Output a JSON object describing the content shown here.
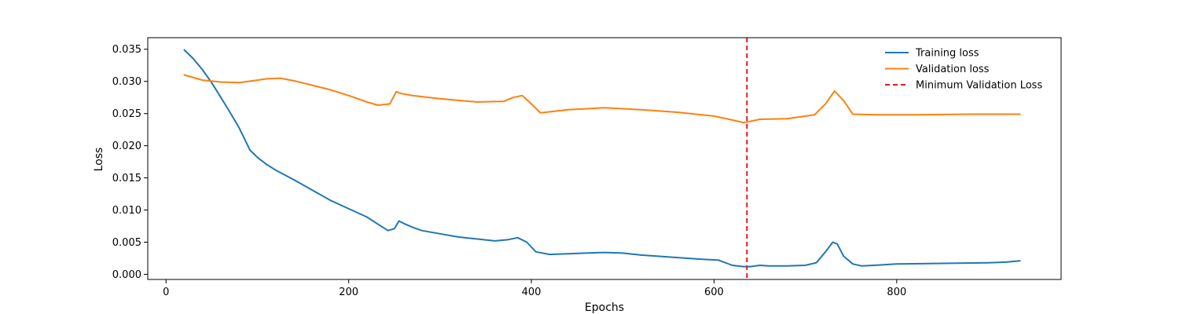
{
  "chart_data": {
    "type": "line",
    "title": "",
    "xlabel": "Epochs",
    "ylabel": "Loss",
    "xlim": [
      -20,
      980
    ],
    "ylim": [
      -0.0008,
      0.0368
    ],
    "x_ticks": [
      0,
      200,
      400,
      600,
      800
    ],
    "x_tick_labels": [
      "0",
      "200",
      "400",
      "600",
      "800"
    ],
    "y_ticks": [
      0.0,
      0.005,
      0.01,
      0.015,
      0.02,
      0.025,
      0.03,
      0.035
    ],
    "y_tick_labels": [
      "0.000",
      "0.005",
      "0.010",
      "0.015",
      "0.020",
      "0.025",
      "0.030",
      "0.035"
    ],
    "grid": false,
    "legend_position": "top-right",
    "series": [
      {
        "name": "Training loss",
        "color": "#1f77b4",
        "style": "solid",
        "x": [
          20,
          30,
          40,
          50,
          60,
          70,
          80,
          92,
          100,
          110,
          120,
          140,
          160,
          180,
          200,
          220,
          232,
          243,
          250,
          255,
          262,
          270,
          280,
          300,
          320,
          340,
          360,
          375,
          385,
          395,
          405,
          420,
          440,
          460,
          480,
          500,
          520,
          540,
          560,
          580,
          605,
          620,
          632,
          640,
          650,
          660,
          680,
          700,
          712,
          722,
          730,
          735,
          742,
          752,
          762,
          775,
          800,
          850,
          900,
          920,
          935
        ],
        "y": [
          0.0349,
          0.0335,
          0.0318,
          0.0298,
          0.0275,
          0.0252,
          0.0228,
          0.0193,
          0.0182,
          0.0171,
          0.0162,
          0.0147,
          0.0131,
          0.0115,
          0.0102,
          0.0089,
          0.0078,
          0.0068,
          0.0071,
          0.0083,
          0.0078,
          0.0073,
          0.0068,
          0.0063,
          0.0058,
          0.0055,
          0.0052,
          0.0054,
          0.0057,
          0.005,
          0.0035,
          0.0031,
          0.0032,
          0.0033,
          0.0034,
          0.0033,
          0.003,
          0.0028,
          0.0026,
          0.0024,
          0.0022,
          0.0014,
          0.0012,
          0.0012,
          0.0014,
          0.0013,
          0.0013,
          0.0014,
          0.0018,
          0.0035,
          0.005,
          0.0047,
          0.0028,
          0.0016,
          0.0013,
          0.0014,
          0.0016,
          0.0017,
          0.0018,
          0.0019,
          0.0021
        ]
      },
      {
        "name": "Validation loss",
        "color": "#ff7f0e",
        "style": "solid",
        "x": [
          20,
          40,
          60,
          80,
          100,
          110,
          125,
          140,
          160,
          180,
          200,
          220,
          232,
          245,
          252,
          258,
          270,
          300,
          340,
          370,
          380,
          390,
          400,
          410,
          440,
          480,
          520,
          560,
          600,
          620,
          632,
          640,
          650,
          680,
          710,
          722,
          732,
          742,
          752,
          780,
          820,
          880,
          935
        ],
        "y": [
          0.031,
          0.0302,
          0.0299,
          0.0298,
          0.0302,
          0.0304,
          0.0305,
          0.0301,
          0.0294,
          0.0287,
          0.0278,
          0.0268,
          0.0263,
          0.0265,
          0.0284,
          0.0281,
          0.0278,
          0.0273,
          0.0268,
          0.0269,
          0.0275,
          0.0278,
          0.0265,
          0.0251,
          0.0256,
          0.0259,
          0.0256,
          0.0252,
          0.0246,
          0.024,
          0.0236,
          0.0238,
          0.0241,
          0.0242,
          0.0248,
          0.0265,
          0.0285,
          0.027,
          0.0249,
          0.0248,
          0.0248,
          0.0249,
          0.0249
        ]
      },
      {
        "name": "Minimum Validation Loss",
        "color": "#e41a1c",
        "style": "dashed",
        "vline_x": 636
      }
    ]
  }
}
